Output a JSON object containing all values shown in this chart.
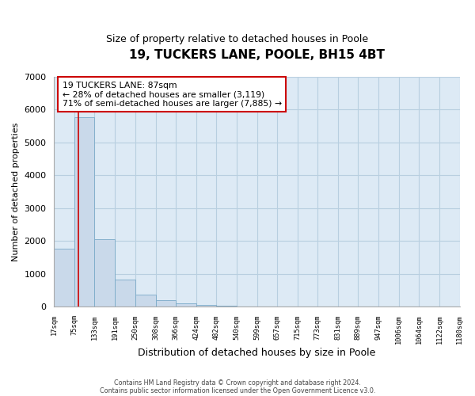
{
  "title": "19, TUCKERS LANE, POOLE, BH15 4BT",
  "subtitle": "Size of property relative to detached houses in Poole",
  "xlabel": "Distribution of detached houses by size in Poole",
  "ylabel": "Number of detached properties",
  "bar_color": "#c9d9ea",
  "bar_edge_color": "#7aaac8",
  "grid_color": "#b8cfe0",
  "background_color": "#ddeaf5",
  "fig_background_color": "#ffffff",
  "vline_color": "#cc0000",
  "vline_x": 87,
  "bin_edges": [
    17,
    75,
    133,
    191,
    250,
    308,
    366,
    424,
    482,
    540,
    599,
    657,
    715,
    773,
    831,
    889,
    947,
    1006,
    1064,
    1122,
    1180
  ],
  "bin_labels": [
    "17sqm",
    "75sqm",
    "133sqm",
    "191sqm",
    "250sqm",
    "308sqm",
    "366sqm",
    "424sqm",
    "482sqm",
    "540sqm",
    "599sqm",
    "657sqm",
    "715sqm",
    "773sqm",
    "831sqm",
    "889sqm",
    "947sqm",
    "1006sqm",
    "1064sqm",
    "1122sqm",
    "1180sqm"
  ],
  "bar_heights": [
    1780,
    5760,
    2050,
    830,
    365,
    215,
    100,
    60,
    30,
    0,
    0,
    0,
    0,
    0,
    0,
    0,
    0,
    0,
    0,
    0
  ],
  "ylim": [
    0,
    7000
  ],
  "yticks": [
    0,
    1000,
    2000,
    3000,
    4000,
    5000,
    6000,
    7000
  ],
  "annotation_title": "19 TUCKERS LANE: 87sqm",
  "annotation_line1": "← 28% of detached houses are smaller (3,119)",
  "annotation_line2": "71% of semi-detached houses are larger (7,885) →",
  "annotation_box_color": "#ffffff",
  "annotation_box_edge": "#cc0000",
  "footer1": "Contains HM Land Registry data © Crown copyright and database right 2024.",
  "footer2": "Contains public sector information licensed under the Open Government Licence v3.0."
}
